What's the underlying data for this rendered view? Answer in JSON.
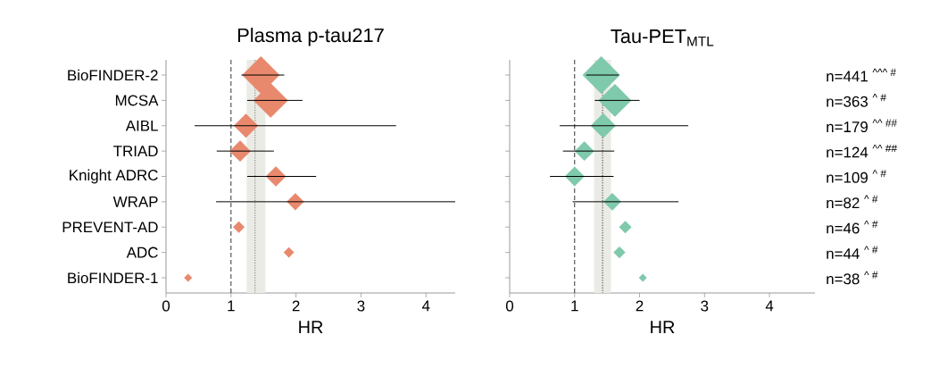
{
  "chart_data": [
    {
      "type": "bubble",
      "orientation": "horizontal",
      "title": "Plasma p-tau217",
      "xlabel": "HR",
      "color": "#e8896e",
      "categories": [
        "BioFINDER-2",
        "MCSA",
        "AIBL",
        "TRIAD",
        "Knight ADRC",
        "WRAP",
        "PREVENT-AD",
        "ADC",
        "BioFINDER-1"
      ],
      "values": [
        1.46,
        1.61,
        1.23,
        1.14,
        1.69,
        1.99,
        1.12,
        1.89,
        0.34
      ],
      "errors": [
        [
          1.16,
          1.82
        ],
        [
          1.25,
          2.1
        ],
        [
          0.44,
          3.54
        ],
        [
          0.78,
          1.66
        ],
        [
          1.25,
          2.31
        ],
        [
          0.77,
          4.45
        ],
        null,
        null,
        null
      ],
      "sizes": [
        1,
        0.85,
        0.42,
        0.32,
        0.29,
        0.21,
        0.095,
        0.077,
        0.046
      ],
      "xlim": [
        0,
        4.45
      ],
      "xticks": [
        0,
        1,
        2,
        3,
        4
      ],
      "ref_lines": [
        {
          "axis": "x",
          "value": 1,
          "line_style": "dashed",
          "color": "#333333"
        },
        {
          "axis": "x",
          "value": 1.37,
          "line_style": "dotted",
          "color": "#777777"
        }
      ],
      "bands": [
        {
          "axis": "x",
          "from": 1.24,
          "to": 1.53,
          "color": "#ebebe6"
        }
      ]
    },
    {
      "type": "bubble",
      "orientation": "horizontal",
      "title": "Tau-PET$_{MTL}$",
      "xlabel": "HR",
      "color": "#7fc9ac",
      "tick_labels": "x",
      "categories": [
        null,
        null,
        null,
        null,
        null,
        null,
        null,
        null,
        null
      ],
      "values": [
        1.41,
        1.62,
        1.44,
        1.15,
        1.0,
        1.58,
        1.78,
        1.69,
        2.05
      ],
      "errors": [
        [
          1.18,
          1.68
        ],
        [
          1.31,
          2.0
        ],
        [
          0.77,
          2.75
        ],
        [
          0.82,
          1.61
        ],
        [
          0.62,
          1.6
        ],
        [
          0.97,
          2.6
        ],
        null,
        null,
        null
      ],
      "sizes": [
        1,
        0.77,
        0.44,
        0.27,
        0.27,
        0.22,
        0.11,
        0.1,
        0.045
      ],
      "xlim": [
        0,
        4.7
      ],
      "xticks": [
        0,
        1,
        2,
        3,
        4
      ],
      "ref_lines": [
        {
          "axis": "x",
          "value": 1,
          "line_style": "dashed",
          "color": "#333333"
        },
        {
          "axis": "x",
          "value": 1.43,
          "line_style": "dotted",
          "color": "#333333"
        }
      ],
      "bands": [
        {
          "axis": "x",
          "from": 1.3,
          "to": 1.56,
          "color": "#ebebe6"
        }
      ],
      "annotations": [
        "n=441 $^{^^^ #}$",
        "n=363 $^{^ #}$",
        "n=179 $^{^^ ##}$",
        "n=124 $^{^^ ##}$",
        "n=109 $^{^ #}$",
        "n=82 $^{^ #}$",
        "n=46 $^{^ #}$",
        "n=44 $^{^ #}$",
        "n=38 $^{^ #}$"
      ]
    }
  ]
}
